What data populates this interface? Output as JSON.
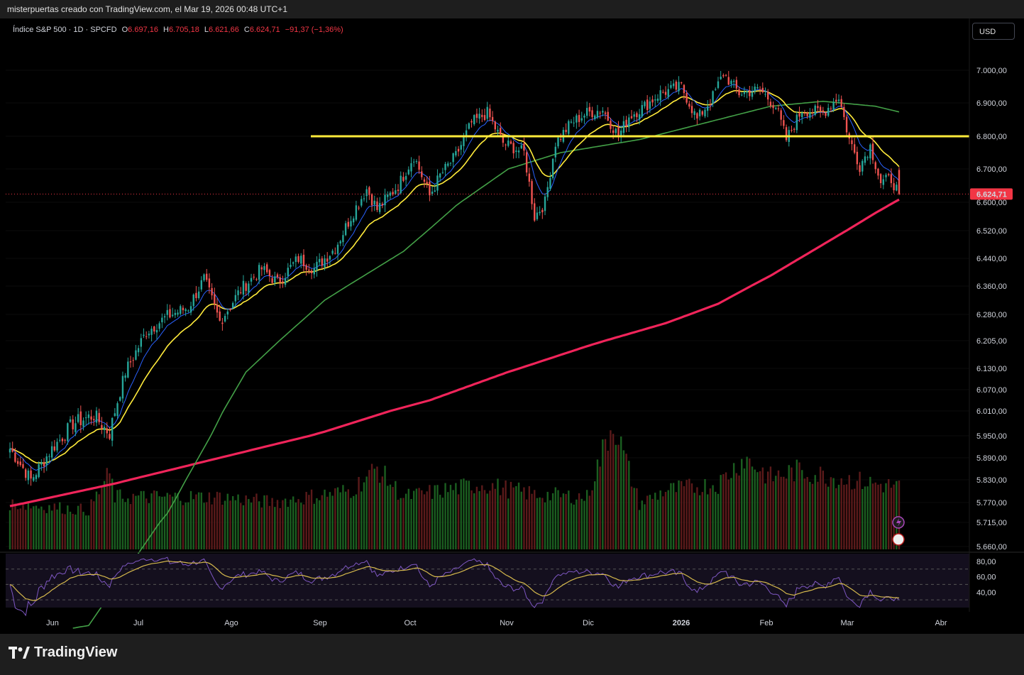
{
  "caption": "misterpuertas creado con TradingView.com, el Mar 19, 2026 00:48 UTC+1",
  "legend": {
    "symbol": "Índice S&P 500 · 1D · SPCFD",
    "open_label": "O",
    "open": "6.697,16",
    "high_label": "H",
    "high": "6.705,18",
    "low_label": "L",
    "low": "6.621,66",
    "close_label": "C",
    "close": "6.624,71",
    "change": "−91,37 (−1,36%)"
  },
  "currency_button": "USD",
  "brand": "TradingView",
  "colors": {
    "up": "#26a69a",
    "down": "#ef5350",
    "vol_up": "#1b5e20",
    "vol_down": "#5b1a1a",
    "ema_fast": "#2962ff",
    "ema_slow": "#ffeb3b",
    "sma50": "#43a047",
    "sma200": "#f0245a",
    "resistance": "#ffeb3b",
    "rsi": "#7e57c2",
    "rsi_ma": "#d4b84c",
    "price_tag": "#f23645"
  },
  "chart_data": {
    "type": "candlestick",
    "price_axis_ticks": [
      "7.000,00",
      "6.900,00",
      "6.800,00",
      "6.700,00",
      "6.600,00",
      "6.520,00",
      "6.440,00",
      "6.360,00",
      "6.280,00",
      "6.205,00",
      "6.130,00",
      "6.070,00",
      "6.010,00",
      "5.950,00",
      "5.890,00",
      "5.830,00",
      "5.770,00",
      "5.715,00",
      "5.660,00"
    ],
    "price_axis_values": [
      7000,
      6900,
      6800,
      6700,
      6600,
      6520,
      6440,
      6360,
      6280,
      6205,
      6130,
      6070,
      6010,
      5950,
      5890,
      5830,
      5770,
      5715,
      5660
    ],
    "time_axis_labels": [
      "Jun",
      "Jul",
      "Ago",
      "Sep",
      "Oct",
      "Nov",
      "Dic",
      "2026",
      "Feb",
      "Mar",
      "Abr"
    ],
    "last_price_label": "6.624,71",
    "last_price": 6624.71,
    "resistance_level": 6800,
    "rsi_axis_ticks": [
      "80,00",
      "60,00",
      "40,00"
    ],
    "rsi_axis_values": [
      80,
      60,
      40
    ],
    "rsi_bands": [
      70,
      50,
      30
    ],
    "anchors": {
      "close": [
        [
          0,
          5915
        ],
        [
          8,
          5830
        ],
        [
          16,
          5915
        ],
        [
          24,
          5980
        ],
        [
          32,
          6000
        ],
        [
          38,
          5955
        ],
        [
          44,
          6120
        ],
        [
          52,
          6230
        ],
        [
          60,
          6275
        ],
        [
          68,
          6300
        ],
        [
          74,
          6380
        ],
        [
          80,
          6260
        ],
        [
          88,
          6350
        ],
        [
          96,
          6410
        ],
        [
          102,
          6370
        ],
        [
          110,
          6440
        ],
        [
          116,
          6410
        ],
        [
          124,
          6470
        ],
        [
          130,
          6560
        ],
        [
          136,
          6640
        ],
        [
          140,
          6580
        ],
        [
          148,
          6650
        ],
        [
          154,
          6740
        ],
        [
          160,
          6620
        ],
        [
          164,
          6680
        ],
        [
          170,
          6740
        ],
        [
          176,
          6840
        ],
        [
          182,
          6870
        ],
        [
          188,
          6780
        ],
        [
          196,
          6750
        ],
        [
          200,
          6560
        ],
        [
          204,
          6600
        ],
        [
          208,
          6780
        ],
        [
          214,
          6840
        ],
        [
          220,
          6870
        ],
        [
          226,
          6880
        ],
        [
          232,
          6800
        ],
        [
          236,
          6860
        ],
        [
          242,
          6890
        ],
        [
          248,
          6930
        ],
        [
          256,
          6950
        ],
        [
          262,
          6850
        ],
        [
          268,
          6920
        ],
        [
          272,
          6990
        ],
        [
          278,
          6930
        ],
        [
          286,
          6940
        ],
        [
          292,
          6890
        ],
        [
          296,
          6790
        ],
        [
          302,
          6880
        ],
        [
          310,
          6870
        ],
        [
          316,
          6920
        ],
        [
          320,
          6790
        ],
        [
          324,
          6710
        ],
        [
          328,
          6770
        ],
        [
          332,
          6660
        ],
        [
          336,
          6670
        ],
        [
          339,
          6624.71
        ]
      ],
      "sma50": [
        [
          0,
          5450
        ],
        [
          30,
          5480
        ],
        [
          60,
          5740
        ],
        [
          90,
          6120
        ],
        [
          120,
          6320
        ],
        [
          150,
          6460
        ],
        [
          170,
          6590
        ],
        [
          190,
          6700
        ],
        [
          210,
          6750
        ],
        [
          240,
          6790
        ],
        [
          270,
          6850
        ],
        [
          290,
          6890
        ],
        [
          310,
          6905
        ],
        [
          330,
          6890
        ],
        [
          339,
          6873
        ]
      ],
      "sma200": [
        [
          0,
          5760
        ],
        [
          40,
          5820
        ],
        [
          80,
          5890
        ],
        [
          120,
          5960
        ],
        [
          160,
          6040
        ],
        [
          190,
          6120
        ],
        [
          220,
          6190
        ],
        [
          250,
          6255
        ],
        [
          270,
          6310
        ],
        [
          290,
          6390
        ],
        [
          310,
          6480
        ],
        [
          330,
          6570
        ],
        [
          339,
          6608
        ]
      ],
      "volume": [
        [
          0,
          0.35
        ],
        [
          30,
          0.3
        ],
        [
          38,
          0.58
        ],
        [
          40,
          0.4
        ],
        [
          80,
          0.4
        ],
        [
          100,
          0.36
        ],
        [
          130,
          0.45
        ],
        [
          140,
          0.62
        ],
        [
          150,
          0.4
        ],
        [
          180,
          0.5
        ],
        [
          200,
          0.42
        ],
        [
          220,
          0.4
        ],
        [
          230,
          0.98
        ],
        [
          240,
          0.35
        ],
        [
          250,
          0.45
        ],
        [
          270,
          0.5
        ],
        [
          280,
          0.7
        ],
        [
          290,
          0.55
        ],
        [
          300,
          0.6
        ],
        [
          330,
          0.5
        ],
        [
          339,
          0.48
        ]
      ]
    }
  }
}
